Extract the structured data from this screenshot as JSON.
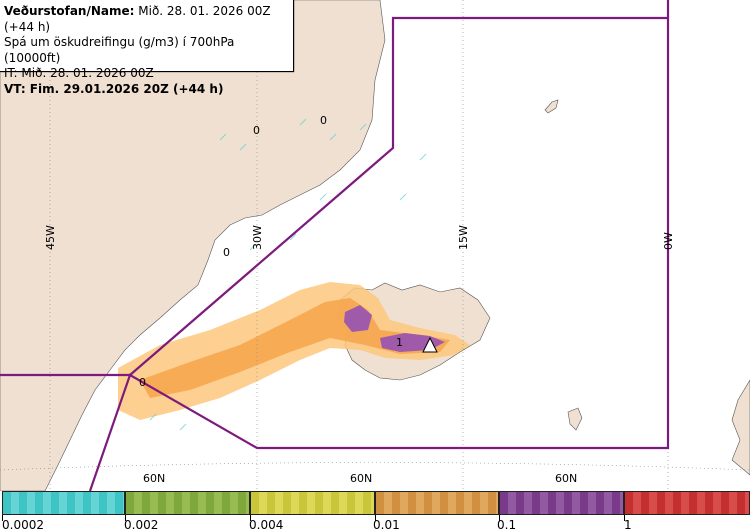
{
  "header": {
    "line1_label": "Veðurstofan/Name:",
    "line1_value": "Mið. 28. 01. 2026 00Z (+44 h)",
    "line2": "Spá um öskudreifingu (g/m3) í 700hPa (10000ft)",
    "line3": "IT: Mið. 28. 01. 2026 00Z",
    "line4": "VT: Fim. 29.01.2026 20Z (+44 h)"
  },
  "grid": {
    "lon_labels": [
      "45W",
      "30W",
      "15W",
      "0W"
    ],
    "lat_labels": [
      "60N",
      "60N",
      "60N"
    ]
  },
  "contour_labels": [
    "0",
    "0",
    "0",
    "0",
    "1"
  ],
  "legend": {
    "ticks": [
      "0.0002",
      "0.002",
      "0.004",
      "0.01",
      "0.1",
      "1"
    ],
    "colors": [
      "#3ec4c4",
      "#7fa83a",
      "#c9c63a",
      "#d09040",
      "#7a3a8a",
      "#c42f2f"
    ]
  },
  "colors": {
    "land": "#f0e0d2",
    "sea": "#ffffff",
    "boundary": "#7d1a7d",
    "ash_light": "#fdc77e",
    "ash_mid": "#f6a64f",
    "ash_high": "#a05aaa"
  }
}
